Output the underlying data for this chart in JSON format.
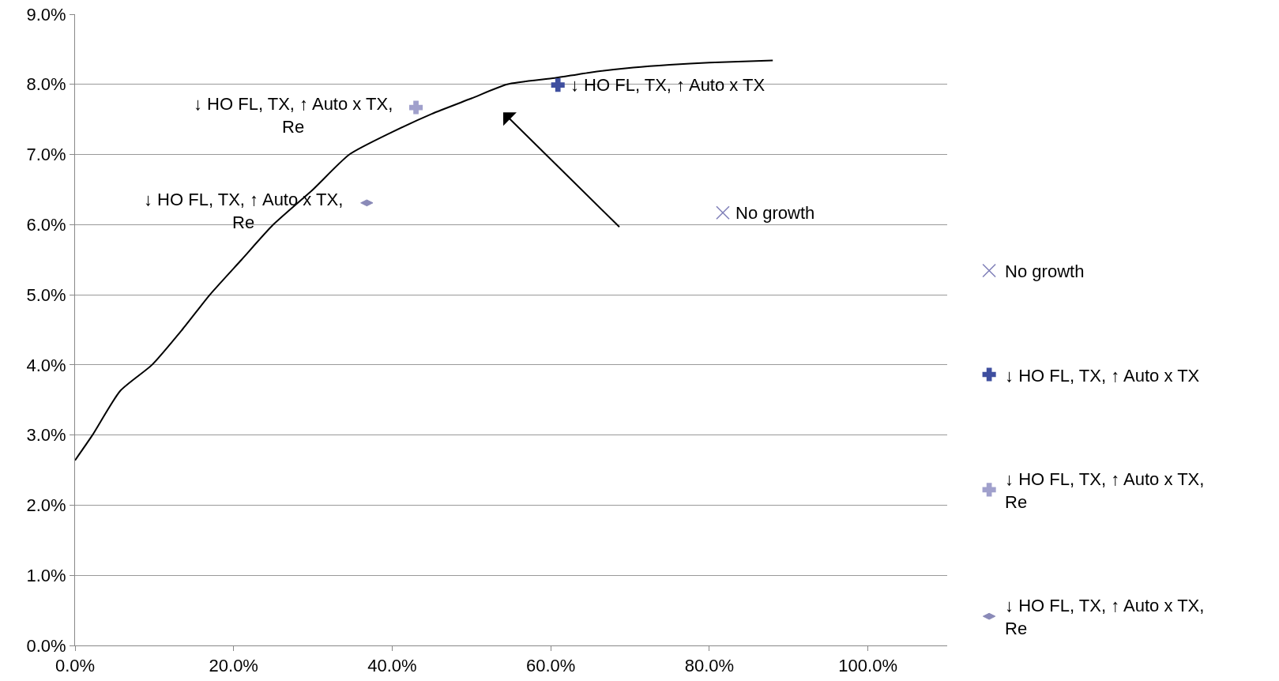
{
  "chart_data": {
    "type": "scatter",
    "xlim": [
      0,
      110
    ],
    "ylim": [
      0,
      9
    ],
    "xticks": [
      {
        "value": 0,
        "label": "0.0%"
      },
      {
        "value": 20,
        "label": "20.0%"
      },
      {
        "value": 40,
        "label": "40.0%"
      },
      {
        "value": 60,
        "label": "60.0%"
      },
      {
        "value": 80,
        "label": "80.0%"
      },
      {
        "value": 100,
        "label": "100.0%"
      }
    ],
    "yticks": [
      {
        "value": 0,
        "label": "0.0%"
      },
      {
        "value": 1,
        "label": "1.0%"
      },
      {
        "value": 2,
        "label": "2.0%"
      },
      {
        "value": 3,
        "label": "3.0%"
      },
      {
        "value": 4,
        "label": "4.0%"
      },
      {
        "value": 5,
        "label": "5.0%"
      },
      {
        "value": 6,
        "label": "6.0%"
      },
      {
        "value": 7,
        "label": "7.0%"
      },
      {
        "value": 8,
        "label": "8.0%"
      },
      {
        "value": 9,
        "label": "9.0%"
      }
    ],
    "grid": "y",
    "legend": "right",
    "series": [
      {
        "type": "line",
        "color": "#000000",
        "marker": "none",
        "x": [
          0,
          2.2,
          5.7,
          9.7,
          13.5,
          17,
          21,
          25,
          30,
          34.6,
          40,
          45,
          50,
          54.5,
          60.5,
          65,
          70.4,
          75,
          80,
          88
        ],
        "values": [
          2.64,
          3,
          3.63,
          4,
          4.5,
          5,
          5.5,
          6,
          6.5,
          7,
          7.32,
          7.58,
          7.8,
          8,
          8.09,
          8.17,
          8.24,
          8.28,
          8.31,
          8.34
        ]
      },
      {
        "name": "No growth",
        "color": "#7f7fb8",
        "marker": "x",
        "x": [
          81.7
        ],
        "values": [
          6.17
        ]
      },
      {
        "name": "↓ HO FL, TX, ↑ Auto x TX",
        "color": "#3f4f9f",
        "marker": "cross",
        "x": [
          60.9
        ],
        "values": [
          7.99
        ]
      },
      {
        "name": "↓ HO FL, TX, ↑ Auto x TX,\nRe",
        "color": "#a0a0cc",
        "marker": "cross",
        "x": [
          43
        ],
        "values": [
          7.67
        ]
      },
      {
        "name": "↓ HO FL, TX, ↑ Auto x TX,\nRe",
        "color": "#8a8ab8",
        "x": [
          36.8
        ],
        "values": [
          6.31
        ]
      }
    ],
    "annotations": [
      {
        "text": "No growth",
        "x": 81.7,
        "y": 6.17
      },
      {
        "text": "↓ HO FL, TX, ↑ Auto x TX",
        "x": 60.9,
        "y": 7.99
      },
      {
        "text": "↓ HO FL, TX, ↑ Auto x TX,\nRe",
        "x": 43,
        "y": 7.67
      },
      {
        "text": "↓ HO FL, TX, ↑ Auto x TX,\nRe",
        "x": 36.8,
        "y": 6.31
      }
    ]
  }
}
